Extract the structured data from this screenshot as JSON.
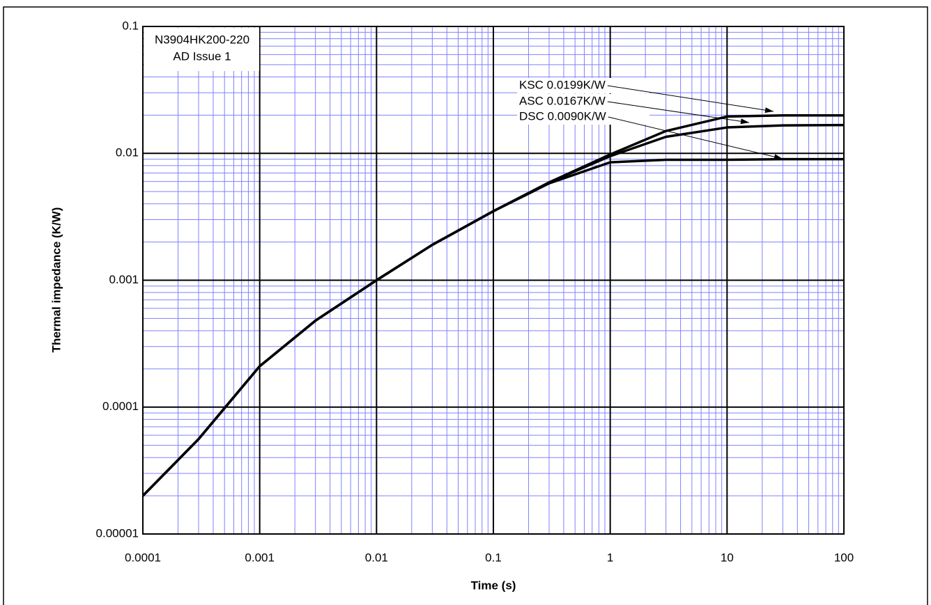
{
  "chart_data": {
    "type": "line",
    "xlabel": "Time (s)",
    "ylabel": "Thermal impedance (K/W)",
    "annotation": [
      "N3904HK200-220",
      "AD Issue 1"
    ],
    "x": [
      0.0001,
      0.0003,
      0.001,
      0.003,
      0.01,
      0.03,
      0.1,
      0.3,
      1,
      3,
      10,
      30,
      100
    ],
    "series": [
      {
        "name": "KSC 0.0199K/W",
        "color": "#000000",
        "values": [
          2e-05,
          5.6e-05,
          0.00021,
          0.00048,
          0.001,
          0.0019,
          0.0035,
          0.0059,
          0.0098,
          0.015,
          0.0195,
          0.0199,
          0.0199
        ]
      },
      {
        "name": "ASC 0.0167K/W",
        "color": "#000000",
        "values": [
          2e-05,
          5.6e-05,
          0.00021,
          0.00048,
          0.001,
          0.0019,
          0.0035,
          0.0059,
          0.0095,
          0.0135,
          0.016,
          0.0166,
          0.0167
        ]
      },
      {
        "name": "DSC 0.0090K/W",
        "color": "#000000",
        "values": [
          2e-05,
          5.6e-05,
          0.00021,
          0.00048,
          0.001,
          0.0019,
          0.0035,
          0.0058,
          0.0085,
          0.0089,
          0.0089,
          0.009,
          0.009
        ]
      }
    ],
    "xscale": "log",
    "yscale": "log",
    "xlim": [
      0.0001,
      100
    ],
    "ylim": [
      1e-05,
      0.1
    ],
    "xticks": [
      0.0001,
      0.001,
      0.01,
      0.1,
      1,
      10,
      100
    ],
    "yticks": [
      1e-05,
      0.0001,
      0.001,
      0.01,
      0.1
    ],
    "grid": true,
    "minor_grid": true,
    "grid_color": "#000000",
    "minor_grid_color": "#8080ff"
  }
}
